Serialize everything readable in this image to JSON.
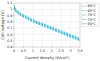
{
  "chart_data": {
    "type": "line",
    "xlabel": "Current density (A/cm²)",
    "ylabel": "Cell voltage (V)",
    "x": [
      0.0,
      0.1,
      0.3,
      0.6,
      1.0,
      1.5,
      2.0,
      2.5,
      3.0,
      3.5
    ],
    "series": [
      {
        "name": "60°C",
        "color": "#00ccff",
        "values": [
          1.06,
          1.0,
          0.95,
          0.9,
          0.84,
          0.78,
          0.72,
          0.66,
          0.6,
          0.54
        ]
      },
      {
        "name": "65°C",
        "color": "#00bbee",
        "values": [
          1.05,
          0.99,
          0.94,
          0.89,
          0.83,
          0.77,
          0.71,
          0.65,
          0.59,
          0.53
        ]
      },
      {
        "name": "70°C",
        "color": "#00aadd",
        "values": [
          1.04,
          0.98,
          0.93,
          0.88,
          0.82,
          0.76,
          0.7,
          0.64,
          0.58,
          0.52
        ]
      },
      {
        "name": "75°C",
        "color": "#0099cc",
        "values": [
          1.03,
          0.97,
          0.92,
          0.87,
          0.81,
          0.75,
          0.69,
          0.63,
          0.57,
          0.51
        ]
      },
      {
        "name": "80°C",
        "color": "#0088bb",
        "values": [
          1.02,
          0.96,
          0.91,
          0.86,
          0.8,
          0.74,
          0.68,
          0.62,
          0.56,
          0.5
        ]
      }
    ],
    "xlim": [
      0,
      3.5
    ],
    "ylim": [
      0.4,
      1.1
    ],
    "xticks": [
      0,
      0.5,
      1,
      1.5,
      2,
      2.5,
      3,
      3.5
    ],
    "yticks": [
      0.4,
      0.5,
      0.6,
      0.7,
      0.8,
      0.9,
      1,
      1.1
    ],
    "grid": true,
    "line_style": "dashed",
    "legend": "upper right"
  }
}
